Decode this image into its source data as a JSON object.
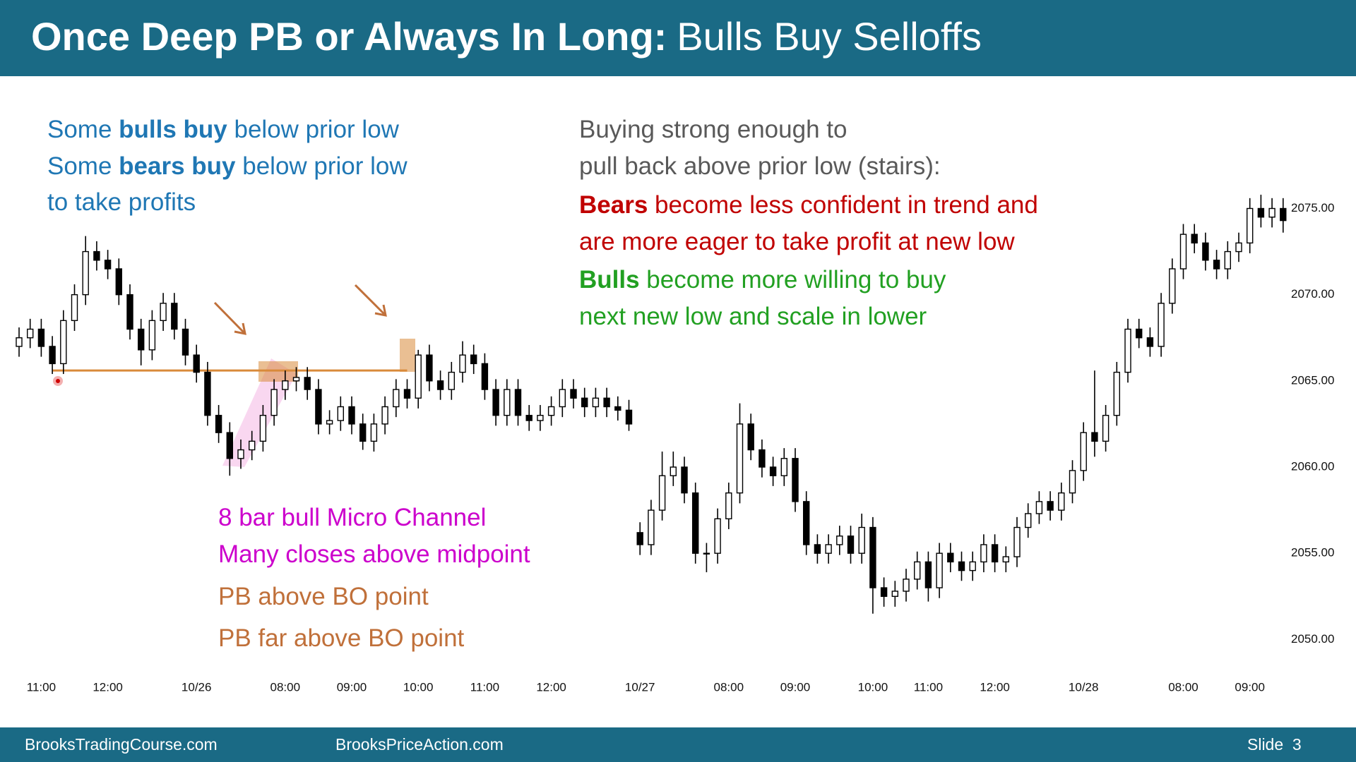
{
  "header": {
    "title_bold": "Once Deep PB or Always In Long:",
    "title_rest": "Bulls Buy Selloffs"
  },
  "footer": {
    "left": "BrooksTradingCourse.com",
    "center": "BrooksPriceAction.com",
    "slide": "Slide  3"
  },
  "chart_data": {
    "type": "candlestick",
    "up_color": "#ffffff",
    "down_color": "#000000",
    "edge_color": "#000000",
    "categories": [
      null,
      null,
      "11:00",
      null,
      null,
      null,
      null,
      null,
      "12:00",
      null,
      null,
      null,
      null,
      null,
      null,
      null,
      "10/26",
      null,
      null,
      null,
      null,
      null,
      null,
      null,
      "08:00",
      null,
      null,
      null,
      null,
      null,
      "09:00",
      null,
      null,
      null,
      null,
      null,
      "10:00",
      null,
      null,
      null,
      null,
      null,
      "11:00",
      null,
      null,
      null,
      null,
      null,
      "12:00",
      null,
      null,
      null,
      null,
      null,
      null,
      null,
      "10/27",
      null,
      null,
      null,
      null,
      null,
      null,
      null,
      "08:00",
      null,
      null,
      null,
      null,
      null,
      "09:00",
      null,
      null,
      null,
      null,
      null,
      null,
      "10:00",
      null,
      null,
      null,
      null,
      "11:00",
      null,
      null,
      null,
      null,
      null,
      "12:00",
      null,
      null,
      null,
      null,
      null,
      null,
      null,
      "10/28",
      null,
      null,
      null,
      null,
      null,
      null,
      null,
      null,
      "08:00",
      null,
      null,
      null,
      null,
      null,
      "09:00",
      null,
      null,
      null
    ],
    "open": [
      2067,
      2067.5,
      2068,
      2067,
      2066,
      2068.5,
      2070,
      2072.5,
      2072,
      2071.5,
      2070,
      2068,
      2066.8,
      2068.5,
      2069.5,
      2068,
      2066.5,
      2065.5,
      2063,
      2062,
      2060.5,
      2061,
      2061.5,
      2063,
      2064.5,
      2065,
      2065.2,
      2064.5,
      2062.5,
      2062.7,
      2063.5,
      2062.5,
      2061.5,
      2062.5,
      2063.5,
      2064.5,
      2064,
      2066.5,
      2065,
      2064.5,
      2065.5,
      2066.5,
      2066,
      2064.5,
      2063,
      2064.5,
      2063,
      2062.7,
      2063,
      2063.5,
      2064.5,
      2064,
      2063.5,
      2064,
      2063.5,
      2063.3,
      2056.2,
      2055.5,
      2057.5,
      2059.5,
      2060,
      2058.5,
      2055,
      2055,
      2057,
      2058.5,
      2062.5,
      2061,
      2060,
      2059.5,
      2060.5,
      2058,
      2055.5,
      2055,
      2055.5,
      2056,
      2055,
      2056.5,
      2053,
      2052.5,
      2052.8,
      2053.5,
      2054.5,
      2053,
      2055,
      2054.5,
      2054,
      2054.5,
      2055.5,
      2054.5,
      2054.8,
      2056.5,
      2057.3,
      2058,
      2057.5,
      2058.5,
      2059.8,
      2062,
      2061.5,
      2063,
      2065.5,
      2068,
      2067.5,
      2067,
      2069.5,
      2071.5,
      2073.5,
      2073,
      2072,
      2071.5,
      2072.5,
      2073,
      2075,
      2074.5,
      2075
    ],
    "high": [
      2068.1,
      2068.6,
      2068.6,
      2067.6,
      2069.1,
      2070.6,
      2073.4,
      2073.1,
      2072.6,
      2072.1,
      2070.6,
      2068.6,
      2069.1,
      2070.1,
      2070.1,
      2068.6,
      2067.1,
      2066.1,
      2063.6,
      2062.6,
      2061.6,
      2062.1,
      2063.6,
      2065.1,
      2065.6,
      2065.8,
      2065.8,
      2065.1,
      2063.3,
      2064.1,
      2064.1,
      2063.1,
      2063.1,
      2064.1,
      2065.1,
      2065.1,
      2066.8,
      2067.1,
      2065.6,
      2066.1,
      2067.3,
      2067.1,
      2066.6,
      2065.1,
      2065.1,
      2065.1,
      2063.6,
      2063.6,
      2064.1,
      2065.1,
      2065.1,
      2064.6,
      2064.6,
      2064.6,
      2064.1,
      2063.9,
      2056.8,
      2058.1,
      2060.9,
      2060.9,
      2060.6,
      2059.1,
      2055.6,
      2057.6,
      2059.1,
      2063.7,
      2063.1,
      2061.6,
      2060.6,
      2061.1,
      2061.1,
      2058.6,
      2056.1,
      2056.1,
      2056.6,
      2056.6,
      2057.3,
      2057.1,
      2053.6,
      2053.4,
      2054.1,
      2055.1,
      2055.1,
      2055.6,
      2055.6,
      2055.1,
      2055.1,
      2056.1,
      2056.1,
      2055.4,
      2057.1,
      2057.9,
      2058.6,
      2058.6,
      2059.1,
      2060.4,
      2062.6,
      2065.6,
      2063.6,
      2066.1,
      2068.6,
      2068.6,
      2068.1,
      2070.1,
      2072.1,
      2074.1,
      2074.1,
      2073.6,
      2072.6,
      2073.1,
      2073.6,
      2075.6,
      2075.8,
      2075.6,
      2075.6
    ],
    "low": [
      2066.4,
      2066.9,
      2066.4,
      2065.4,
      2065.4,
      2067.9,
      2069.4,
      2071.4,
      2070.9,
      2069.4,
      2067.4,
      2065.9,
      2066.2,
      2067.9,
      2067.4,
      2065.9,
      2064.9,
      2062.4,
      2061.4,
      2059.5,
      2059.9,
      2060.4,
      2060.9,
      2062.4,
      2063.9,
      2064.4,
      2063.9,
      2061.9,
      2061.9,
      2062.1,
      2061.9,
      2061,
      2060.9,
      2061.9,
      2062.9,
      2063.4,
      2063.4,
      2064.4,
      2063.9,
      2063.9,
      2064.9,
      2065.4,
      2063.9,
      2062.4,
      2062.4,
      2062.4,
      2062.1,
      2062.1,
      2062.4,
      2062.9,
      2063.4,
      2062.9,
      2062.9,
      2062.9,
      2062.7,
      2062.1,
      2054.9,
      2054.9,
      2056.9,
      2058.9,
      2057.9,
      2054.4,
      2053.9,
      2054.4,
      2056.4,
      2057.9,
      2060.4,
      2059.4,
      2058.9,
      2058.9,
      2057.4,
      2054.9,
      2054.4,
      2054.4,
      2054.9,
      2054.4,
      2054.4,
      2051.5,
      2051.9,
      2051.9,
      2052.2,
      2052.9,
      2052.2,
      2052.4,
      2053.9,
      2053.4,
      2053.4,
      2053.9,
      2053.9,
      2053.9,
      2054.2,
      2055.9,
      2056.7,
      2056.9,
      2056.9,
      2057.9,
      2059.2,
      2060.6,
      2060.9,
      2062.4,
      2064.9,
      2066.9,
      2066.4,
      2066.4,
      2068.9,
      2070.9,
      2072.4,
      2071.4,
      2070.9,
      2070.9,
      2071.9,
      2072.4,
      2073.9,
      2073.9,
      2073.6
    ],
    "close": [
      2067.5,
      2068,
      2067,
      2066,
      2068.5,
      2070,
      2072.5,
      2072,
      2071.5,
      2070,
      2068,
      2066.8,
      2068.5,
      2069.5,
      2068,
      2066.5,
      2065.5,
      2063,
      2062,
      2060.5,
      2061,
      2061.5,
      2063,
      2064.5,
      2065,
      2065.2,
      2064.5,
      2062.5,
      2062.7,
      2063.5,
      2062.5,
      2061.5,
      2062.5,
      2063.5,
      2064.5,
      2064,
      2066.5,
      2065,
      2064.5,
      2065.5,
      2066.5,
      2066,
      2064.5,
      2063,
      2064.5,
      2063,
      2062.7,
      2063,
      2063.5,
      2064.5,
      2064,
      2063.5,
      2064,
      2063.5,
      2063.3,
      2062.5,
      2055.5,
      2057.5,
      2059.5,
      2060,
      2058.5,
      2055,
      2055,
      2057,
      2058.5,
      2062.5,
      2061,
      2060,
      2059.5,
      2060.5,
      2058,
      2055.5,
      2055,
      2055.5,
      2056,
      2055,
      2056.5,
      2053,
      2052.5,
      2052.8,
      2053.5,
      2054.5,
      2053,
      2055,
      2054.5,
      2054,
      2054.5,
      2055.5,
      2054.5,
      2054.8,
      2056.5,
      2057.3,
      2058,
      2057.5,
      2058.5,
      2059.8,
      2062,
      2061.5,
      2063,
      2065.5,
      2068,
      2067.5,
      2067,
      2069.5,
      2071.5,
      2073.5,
      2073,
      2072,
      2071.5,
      2072.5,
      2073,
      2075,
      2074.5,
      2075,
      2074.3
    ],
    "ylim": [
      2048.5,
      2082.1
    ],
    "yticks": [
      {
        "value": 2050,
        "label": "2050.00"
      },
      {
        "value": 2055,
        "label": "2055.00"
      },
      {
        "value": 2060,
        "label": "2060.00"
      },
      {
        "value": 2065,
        "label": "2065.00"
      },
      {
        "value": 2070,
        "label": "2070.00"
      },
      {
        "value": 2075,
        "label": "2075.00"
      }
    ],
    "level": {
      "value": 2065.6,
      "color": "#d98a3a"
    },
    "annotations": [
      {
        "color": "#1f77b4",
        "lines": [
          [
            {
              "text": "Some "
            },
            {
              "text": "bulls buy",
              "bold": true
            },
            {
              "text": " below prior low"
            }
          ],
          [
            {
              "text": "Some "
            },
            {
              "text": "bears buy",
              "bold": true
            },
            {
              "text": " below prior low"
            }
          ],
          [
            {
              "text": "to take profits"
            }
          ]
        ]
      },
      {
        "color": "#595959",
        "lines": [
          [
            {
              "text": "Buying strong enough to"
            }
          ],
          [
            {
              "text": "pull back above prior low (stairs):"
            }
          ]
        ]
      },
      {
        "color": "#c00000",
        "lines": [
          [
            {
              "text": "Bears",
              "bold": true
            },
            {
              "text": " become less confident in trend and"
            }
          ],
          [
            {
              "text": "are more eager to take profit at new low"
            }
          ]
        ]
      },
      {
        "color": "#22a022",
        "lines": [
          [
            {
              "text": "Bulls",
              "bold": true
            },
            {
              "text": " become more willing to buy"
            }
          ],
          [
            {
              "text": "next new low and scale in lower"
            }
          ]
        ]
      },
      {
        "color": "#cc00cc",
        "lines": [
          [
            {
              "text": "8 bar bull Micro Channel"
            }
          ],
          [
            {
              "text": "Many closes above midpoint"
            }
          ]
        ]
      },
      {
        "color": "#c0703a",
        "lines": [
          [
            {
              "text": "PB above BO point"
            }
          ]
        ]
      },
      {
        "color": "#c0703a",
        "lines": [
          [
            {
              "text": "PB far above BO point"
            }
          ]
        ]
      }
    ]
  }
}
